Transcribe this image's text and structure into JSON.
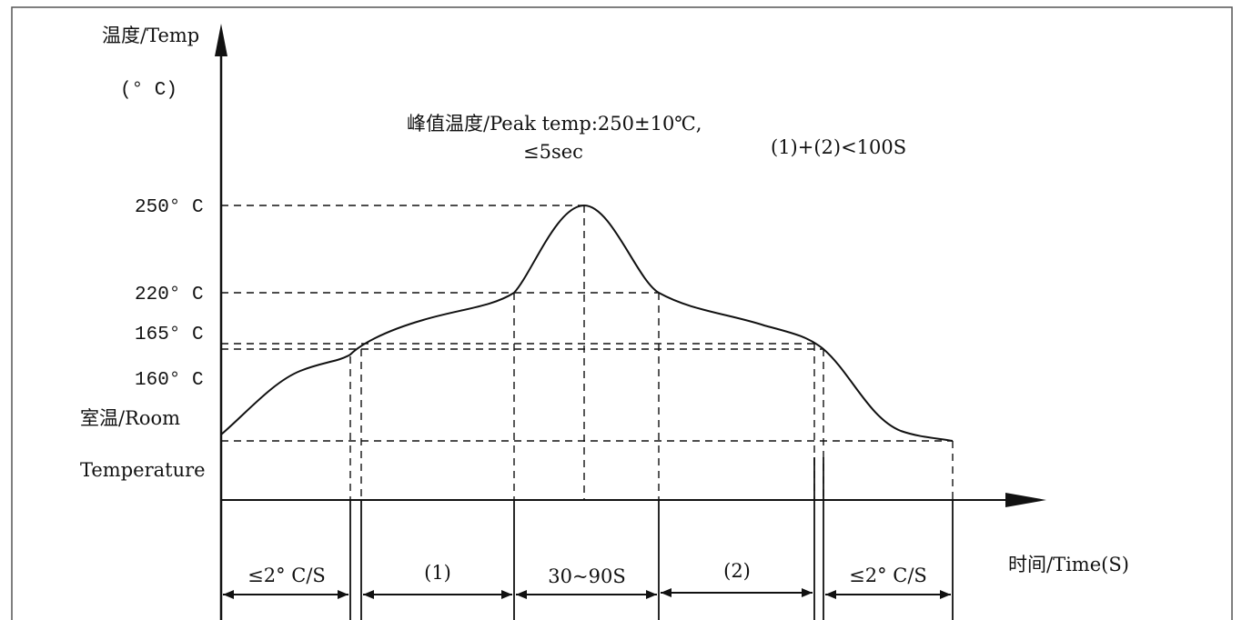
{
  "y_axis": {
    "title": "温度/Temp",
    "unit": "(° C)",
    "tick_labels": [
      "250° C",
      "220° C",
      "165° C",
      "160° C"
    ],
    "room_label_line1": "室温/Room",
    "room_label_line2": "Temperature"
  },
  "x_axis": {
    "title": "时间/Time(S)"
  },
  "annotations": {
    "peak_line1": "峰值温度/Peak temp:250±10℃,",
    "peak_line2": "≤5sec",
    "sum_note": "(1)+(2)<100S"
  },
  "intervals": [
    "≤2° C/S",
    "(1)",
    "30~90S",
    "(2)",
    "≤2° C/S"
  ],
  "colors": {
    "line": "#111111",
    "background": "#ffffff",
    "border": "#555555"
  }
}
